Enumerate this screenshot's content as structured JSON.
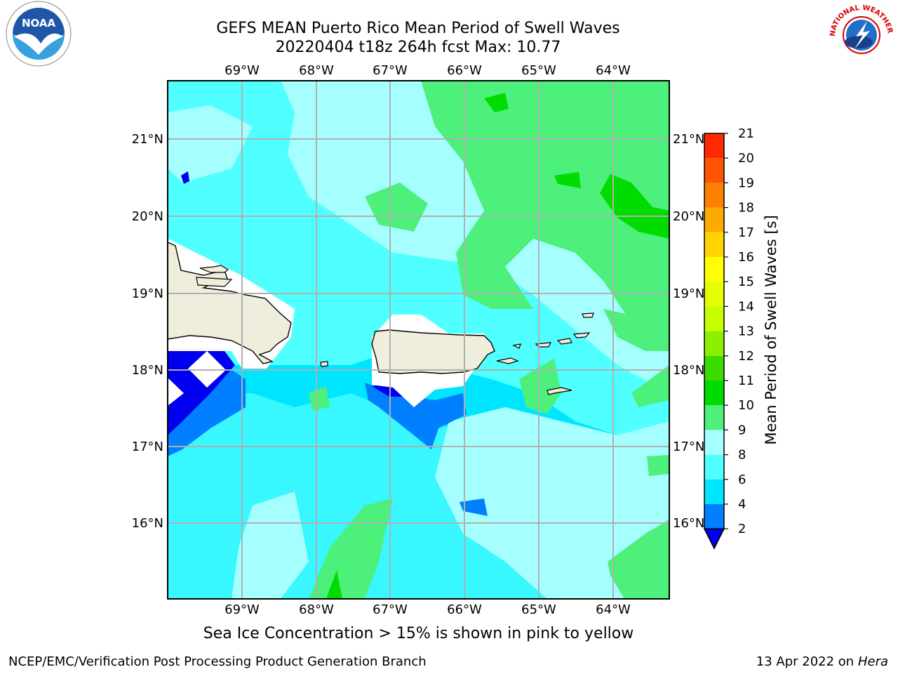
{
  "title_line1": "GEFS MEAN Puerto Rico Mean Period of Swell Waves",
  "title_line2": "20220404 t18z 264h fcst   Max: 10.77",
  "subcaption": "Sea Ice Concentration > 15% is shown in pink to yellow",
  "footer_left": "NCEP/EMC/Verification Post Processing Product Generation Branch",
  "footer_date": "13 Apr 2022 on ",
  "footer_host": "Hera",
  "lon_labels": [
    "69°W",
    "68°W",
    "67°W",
    "66°W",
    "65°W",
    "64°W"
  ],
  "lat_labels": [
    "21°N",
    "20°N",
    "19°N",
    "18°N",
    "17°N",
    "16°N"
  ],
  "colorbar": {
    "label": "Mean Period of Swell Waves [s]",
    "ticks": [
      "21",
      "20",
      "19",
      "18",
      "17",
      "16",
      "15",
      "14",
      "13",
      "12",
      "11",
      "10",
      "9",
      "8",
      "6",
      "4",
      "2"
    ],
    "colors": [
      "#ff0000",
      "#ff2a00",
      "#ff5500",
      "#ff8000",
      "#ffaa00",
      "#ffd400",
      "#ffff00",
      "#e6ff00",
      "#c8ff00",
      "#8cf000",
      "#3cdc00",
      "#00dc00",
      "#4cf07a",
      "#a6ffff",
      "#50ffff",
      "#00e5ff",
      "#0080ff",
      "#0000ee"
    ]
  },
  "logos": {
    "left": "NOAA",
    "right": "NATIONAL WEATHER SERVICE"
  },
  "chart_data": {
    "type": "heatmap",
    "title": "GEFS MEAN Puerto Rico Mean Period of Swell Waves",
    "subtitle": "20220404 t18z 264h fcst   Max: 10.77",
    "max_value": 10.77,
    "lon_range": [
      -70.0,
      -63.25
    ],
    "lat_range": [
      15.0,
      21.75
    ],
    "colorbar_levels": [
      2,
      4,
      6,
      8,
      9,
      10,
      11,
      12,
      13,
      14,
      15,
      16,
      17,
      18,
      19,
      20,
      21
    ]
  }
}
